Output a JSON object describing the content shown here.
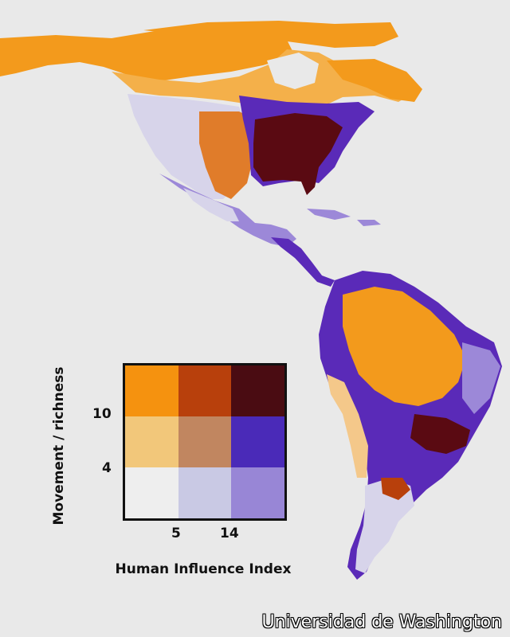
{
  "legend": {
    "y_label": "Movement / richness",
    "x_label": "Human Influence Index",
    "y_ticks": [
      "10",
      "4"
    ],
    "x_ticks": [
      "5",
      "14"
    ],
    "grid_colors": [
      [
        "#f5920f",
        "#b8400c",
        "#4a0c12"
      ],
      [
        "#f2c77a",
        "#c18660",
        "#4a2ab8"
      ],
      [
        "#eeeeee",
        "#c9c9e4",
        "#9886d6"
      ]
    ]
  },
  "map": {
    "land_colors": {
      "orange": "#f39a1c",
      "light_orange": "#f4c88a",
      "dark": "#5a0a12",
      "purple": "#5a2ab8",
      "lavender": "#9c88d8",
      "pale": "#d7d4ea"
    },
    "ocean_color": "#e9e9e9"
  },
  "credit": "Universidad de Washington"
}
